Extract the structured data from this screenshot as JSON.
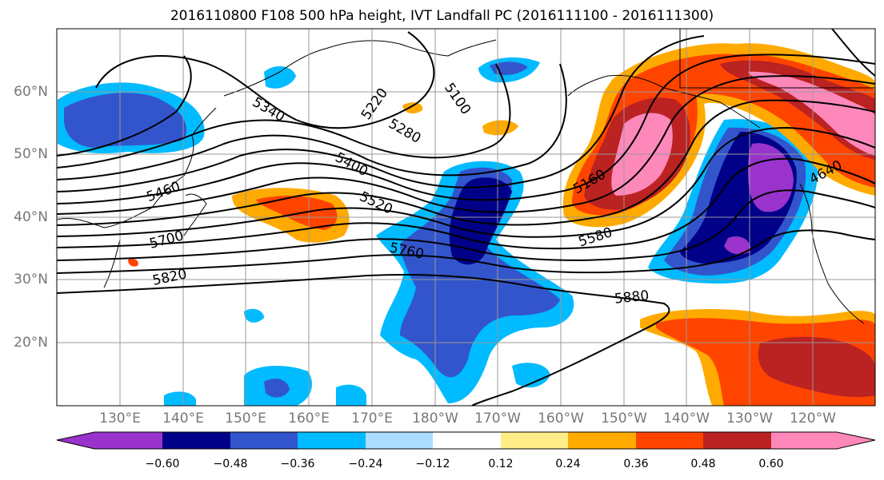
{
  "title": "2016110800 F108 500 hPa height, IVT Landfall PC (2016111100 - 2016111300)",
  "lat_labels": [
    "60°N",
    "50°N",
    "40°N",
    "30°N",
    "20°N"
  ],
  "lon_labels": [
    "130°E",
    "140°E",
    "150°E",
    "160°E",
    "170°E",
    "180°W",
    "170°W",
    "160°W",
    "150°W",
    "140°W",
    "130°W",
    "120°W"
  ],
  "contour_labels": [
    "5340",
    "5220",
    "5100",
    "5280",
    "5400",
    "5160",
    "5460",
    "5520",
    "4640",
    "5700",
    "5580",
    "5760",
    "5820",
    "5880"
  ],
  "colorbar": {
    "tick_labels": [
      "−0.60",
      "−0.48",
      "−0.36",
      "−0.24",
      "−0.12",
      "0.12",
      "0.24",
      "0.36",
      "0.48",
      "0.60"
    ],
    "colors": [
      "#9933cc",
      "#000088",
      "#3355cc",
      "#00bbff",
      "#aaddff",
      "#ffffff",
      "#ffee88",
      "#ffaa00",
      "#ff4400",
      "#bb2222",
      "#ff88bb"
    ]
  }
}
